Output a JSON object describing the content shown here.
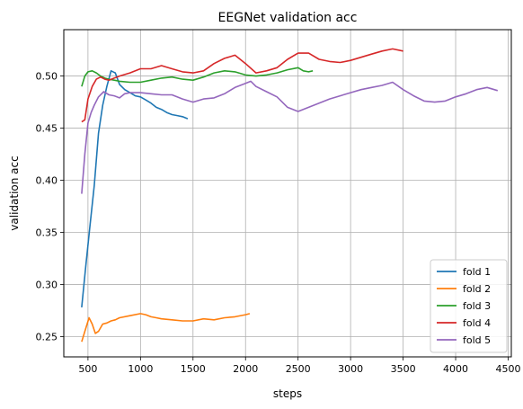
{
  "chart_data": {
    "type": "line",
    "title": "EEGNet validation acc",
    "xlabel": "steps",
    "ylabel": "validation acc",
    "xlim": [
      270,
      4530
    ],
    "ylim": [
      0.2305,
      0.5445
    ],
    "xticks": [
      500,
      1000,
      1500,
      2000,
      2500,
      3000,
      3500,
      4000,
      4500
    ],
    "yticks": [
      0.25,
      0.3,
      0.35,
      0.4,
      0.45,
      0.5
    ],
    "ytick_labels": [
      "0.25",
      "0.30",
      "0.35",
      "0.40",
      "0.45",
      "0.50"
    ],
    "grid": true,
    "legend_position": "lower-right",
    "series": [
      {
        "name": "fold 1",
        "color": "#1f77b4",
        "x": [
          440,
          480,
          520,
          560,
          600,
          640,
          680,
          720,
          760,
          800,
          850,
          900,
          950,
          1000,
          1050,
          1100,
          1150,
          1200,
          1250,
          1300,
          1350,
          1400,
          1450
        ],
        "y": [
          0.278,
          0.318,
          0.357,
          0.395,
          0.445,
          0.472,
          0.49,
          0.505,
          0.503,
          0.492,
          0.487,
          0.484,
          0.481,
          0.48,
          0.477,
          0.474,
          0.47,
          0.468,
          0.465,
          0.463,
          0.462,
          0.461,
          0.459
        ]
      },
      {
        "name": "fold 2",
        "color": "#ff7f0e",
        "x": [
          440,
          480,
          510,
          540,
          570,
          600,
          640,
          680,
          720,
          760,
          800,
          900,
          1000,
          1050,
          1100,
          1150,
          1200,
          1300,
          1400,
          1500,
          1600,
          1700,
          1800,
          1900,
          2000,
          2040
        ],
        "y": [
          0.245,
          0.258,
          0.268,
          0.262,
          0.253,
          0.255,
          0.262,
          0.263,
          0.265,
          0.266,
          0.268,
          0.27,
          0.272,
          0.271,
          0.269,
          0.268,
          0.267,
          0.266,
          0.265,
          0.265,
          0.267,
          0.266,
          0.268,
          0.269,
          0.271,
          0.272
        ]
      },
      {
        "name": "fold 3",
        "color": "#2ca02c",
        "x": [
          440,
          470,
          500,
          540,
          580,
          620,
          660,
          700,
          750,
          800,
          900,
          1000,
          1100,
          1200,
          1300,
          1400,
          1500,
          1600,
          1700,
          1800,
          1900,
          2000,
          2100,
          2200,
          2300,
          2400,
          2500,
          2550,
          2600,
          2640
        ],
        "y": [
          0.49,
          0.5,
          0.504,
          0.505,
          0.503,
          0.5,
          0.498,
          0.497,
          0.496,
          0.495,
          0.494,
          0.494,
          0.496,
          0.498,
          0.499,
          0.497,
          0.496,
          0.499,
          0.503,
          0.505,
          0.504,
          0.501,
          0.5,
          0.501,
          0.503,
          0.506,
          0.508,
          0.505,
          0.504,
          0.505
        ]
      },
      {
        "name": "fold 4",
        "color": "#d62728",
        "x": [
          440,
          470,
          500,
          540,
          580,
          620,
          660,
          700,
          750,
          800,
          900,
          1000,
          1100,
          1200,
          1300,
          1400,
          1500,
          1600,
          1700,
          1800,
          1900,
          2000,
          2100,
          2200,
          2300,
          2400,
          2500,
          2600,
          2700,
          2800,
          2900,
          3000,
          3100,
          3200,
          3300,
          3400,
          3500
        ],
        "y": [
          0.456,
          0.458,
          0.478,
          0.49,
          0.497,
          0.499,
          0.497,
          0.496,
          0.498,
          0.5,
          0.503,
          0.507,
          0.507,
          0.51,
          0.507,
          0.504,
          0.503,
          0.505,
          0.512,
          0.517,
          0.52,
          0.512,
          0.503,
          0.505,
          0.508,
          0.516,
          0.522,
          0.522,
          0.516,
          0.514,
          0.513,
          0.515,
          0.518,
          0.521,
          0.524,
          0.526,
          0.524
        ]
      },
      {
        "name": "fold 5",
        "color": "#9467bd",
        "x": [
          440,
          470,
          500,
          530,
          560,
          600,
          650,
          700,
          750,
          800,
          850,
          900,
          1000,
          1100,
          1200,
          1300,
          1400,
          1500,
          1600,
          1700,
          1800,
          1900,
          2000,
          2050,
          2100,
          2200,
          2300,
          2400,
          2500,
          2600,
          2700,
          2800,
          2900,
          3000,
          3100,
          3200,
          3300,
          3400,
          3500,
          3600,
          3700,
          3800,
          3900,
          4000,
          4100,
          4200,
          4300,
          4400
        ],
        "y": [
          0.387,
          0.425,
          0.455,
          0.465,
          0.472,
          0.48,
          0.485,
          0.482,
          0.481,
          0.479,
          0.483,
          0.484,
          0.484,
          0.483,
          0.482,
          0.482,
          0.478,
          0.475,
          0.478,
          0.479,
          0.483,
          0.489,
          0.493,
          0.495,
          0.49,
          0.485,
          0.48,
          0.47,
          0.466,
          0.47,
          0.474,
          0.478,
          0.481,
          0.484,
          0.487,
          0.489,
          0.491,
          0.494,
          0.487,
          0.481,
          0.476,
          0.475,
          0.476,
          0.48,
          0.483,
          0.487,
          0.489,
          0.486
        ]
      }
    ]
  }
}
